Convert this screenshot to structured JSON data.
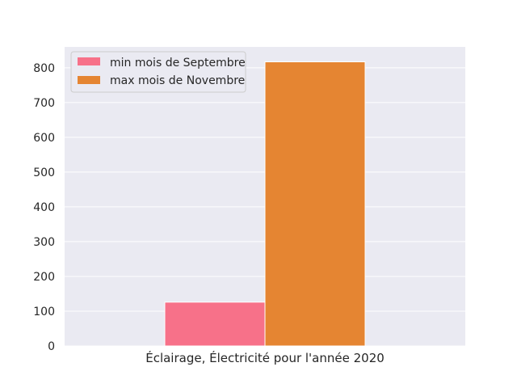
{
  "chart_data": {
    "type": "bar",
    "xlabel": "Éclairage, Électricité pour l'année 2020",
    "ylabel": "",
    "title": "",
    "ylim": [
      0,
      860
    ],
    "yticks": [
      0,
      100,
      200,
      300,
      400,
      500,
      600,
      700,
      800
    ],
    "grid": true,
    "legend_position": "top-left",
    "series": [
      {
        "name": "min mois de Septembre",
        "value": 126,
        "color": "#f77189"
      },
      {
        "name": "max mois de Novembre",
        "value": 817,
        "color": "#e58532"
      }
    ]
  },
  "colors": {
    "plot_background": "#eaeaf2",
    "grid": "#ffffff"
  }
}
